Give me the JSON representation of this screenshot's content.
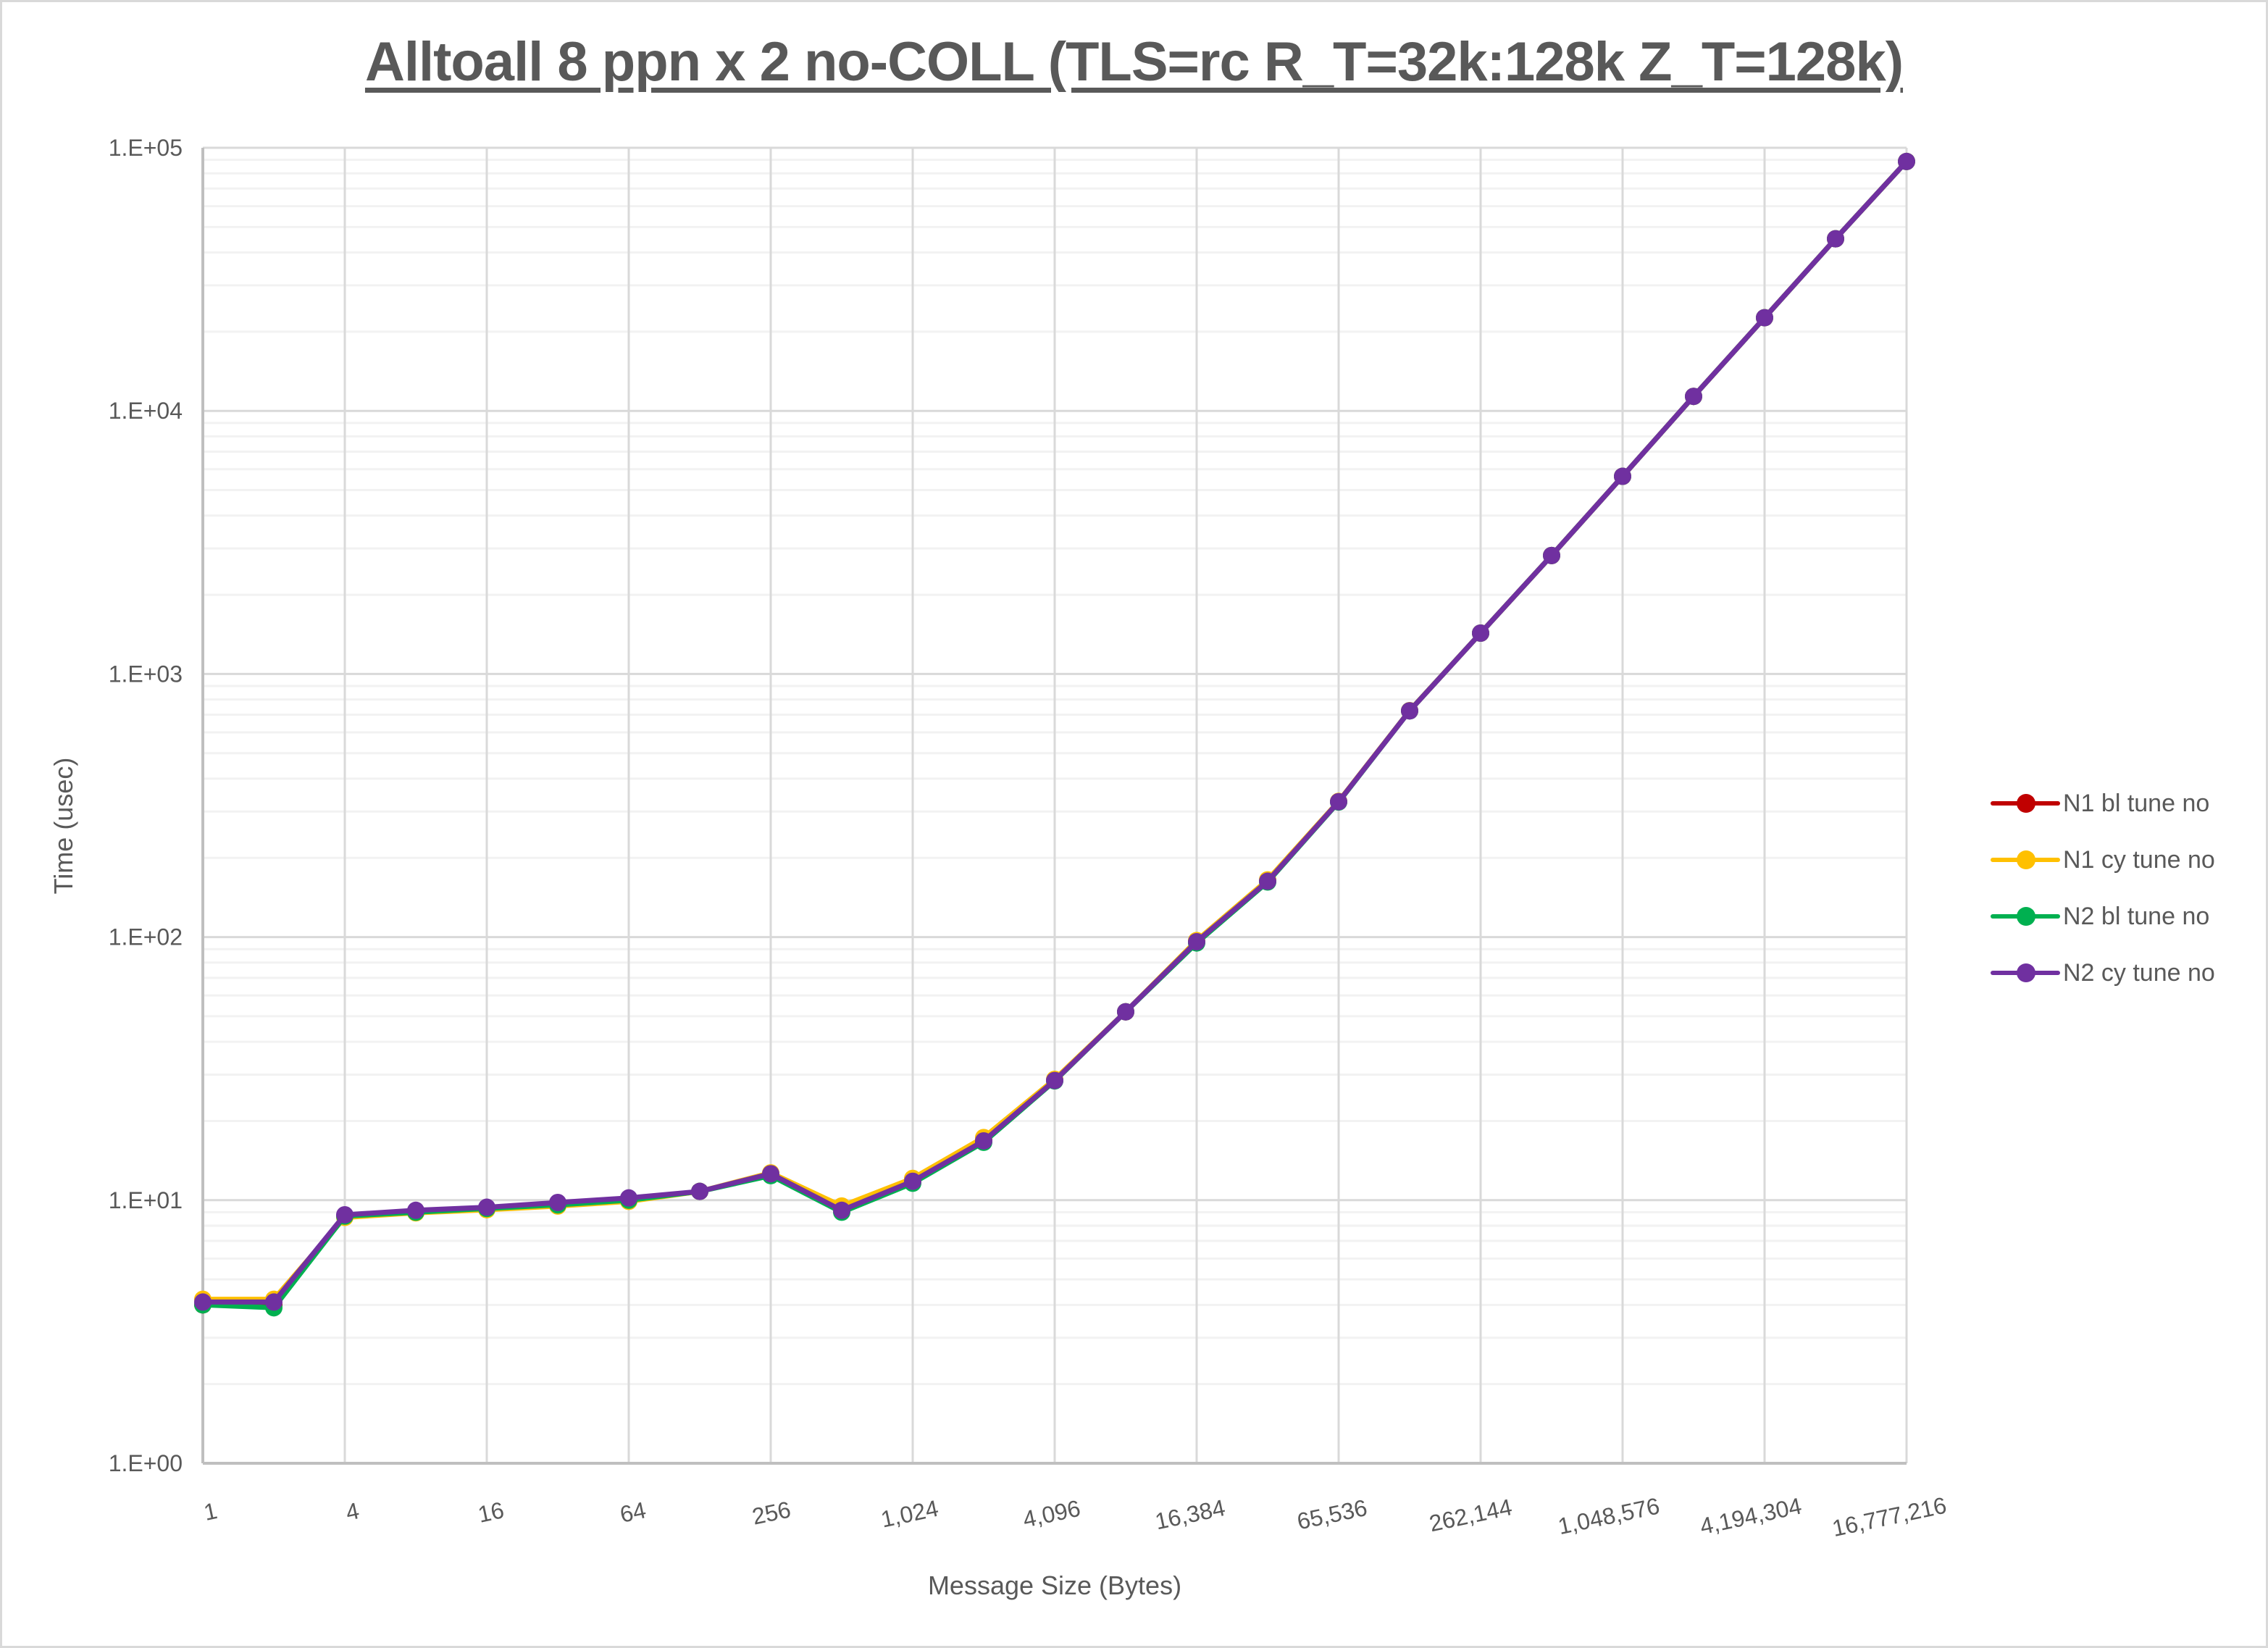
{
  "chart": {
    "title": "Alltoall 8 ppn x 2 no-COLL (TLS=rc R_T=32k:128k Z_T=128k)",
    "xlabel": "Message Size (Bytes)",
    "ylabel": "Time (usec)"
  },
  "legend": [
    {
      "name": "N1 bl tune no",
      "color": "#c00000"
    },
    {
      "name": "N1 cy tune no",
      "color": "#ffc000"
    },
    {
      "name": "N2 bl tune no",
      "color": "#00b050"
    },
    {
      "name": "N2 cy tune no",
      "color": "#7030a0"
    }
  ],
  "chart_data": {
    "type": "line",
    "title": "Alltoall 8 ppn x 2 no-COLL (TLS=rc R_T=32k:128k Z_T=128k)",
    "xlabel": "Message Size (Bytes)",
    "ylabel": "Time (usec)",
    "xscale": "log2",
    "yscale": "log10",
    "ylim": [
      1,
      100000
    ],
    "xlim": [
      1,
      16777216
    ],
    "grid": true,
    "legend_position": "right",
    "x_tick_labels": [
      "1",
      "4",
      "16",
      "64",
      "256",
      "1,024",
      "4,096",
      "16,384",
      "65,536",
      "262,144",
      "1,048,576",
      "4,194,304",
      "16,777,216"
    ],
    "y_tick_labels": [
      "1.E+00",
      "1.E+01",
      "1.E+02",
      "1.E+03",
      "1.E+04",
      "1.E+05"
    ],
    "x": [
      1,
      2,
      4,
      8,
      16,
      32,
      64,
      128,
      256,
      512,
      1024,
      2048,
      4096,
      8192,
      16384,
      32768,
      65536,
      131072,
      262144,
      524288,
      1048576,
      2097152,
      4194304,
      8388608,
      16777216
    ],
    "series": [
      {
        "name": "N1 bl tune no",
        "color": "#c00000",
        "values": [
          4.0,
          4.0,
          8.7,
          9.0,
          9.3,
          9.6,
          10.0,
          10.8,
          12.5,
          9.2,
          11.8,
          16.9,
          28.6,
          52,
          96,
          164,
          327,
          725,
          1430,
          2820,
          5640,
          11350,
          22600,
          45100,
          88700
        ]
      },
      {
        "name": "N1 cy tune no",
        "color": "#ffc000",
        "values": [
          4.2,
          4.2,
          8.6,
          8.95,
          9.2,
          9.5,
          9.9,
          10.8,
          12.7,
          9.5,
          12.1,
          17.3,
          28.8,
          52,
          97,
          165,
          328,
          725,
          1430,
          2820,
          5640,
          11350,
          22600,
          45100,
          88700
        ]
      },
      {
        "name": "N2 bl tune no",
        "color": "#00b050",
        "values": [
          4.0,
          3.9,
          8.7,
          9.0,
          9.3,
          9.6,
          10.0,
          10.8,
          12.4,
          9.0,
          11.6,
          16.6,
          28.4,
          52,
          95,
          162,
          326,
          724,
          1430,
          2820,
          5640,
          11350,
          22600,
          45100,
          88700
        ]
      },
      {
        "name": "N2 cy tune no",
        "color": "#7030a0",
        "values": [
          4.1,
          4.1,
          8.8,
          9.15,
          9.4,
          9.8,
          10.2,
          10.8,
          12.6,
          9.15,
          11.8,
          16.8,
          28.5,
          52,
          96,
          163,
          327,
          724,
          1430,
          2820,
          5640,
          11350,
          22600,
          45100,
          88700
        ]
      }
    ]
  }
}
